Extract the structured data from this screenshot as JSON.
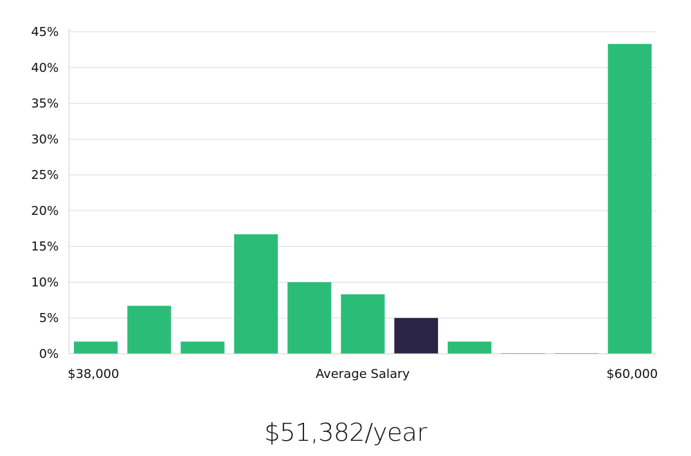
{
  "chart_data": {
    "type": "bar",
    "categories": [
      "1",
      "2",
      "3",
      "4",
      "5",
      "6",
      "7",
      "8",
      "9",
      "10",
      "11"
    ],
    "values": [
      1.7,
      6.7,
      1.7,
      16.7,
      10.0,
      8.3,
      5.0,
      1.7,
      0.0,
      0.0,
      43.3
    ],
    "highlight_index": 6,
    "title": "",
    "xlabel": "Average Salary",
    "x_start_label": "$38,000",
    "x_end_label": "$60,000",
    "ylabel": "",
    "ylim": [
      0,
      45
    ],
    "yticks": [
      0,
      5,
      10,
      15,
      20,
      25,
      30,
      35,
      40,
      45
    ],
    "ytick_suffix": "%",
    "grid": true,
    "legend": "none",
    "colors": {
      "bar": "#2bbd77",
      "highlight": "#2a2548",
      "grid": "#dddddd",
      "axis": "#cccccc"
    }
  },
  "summary": {
    "salary_text": "$51,382/year"
  }
}
